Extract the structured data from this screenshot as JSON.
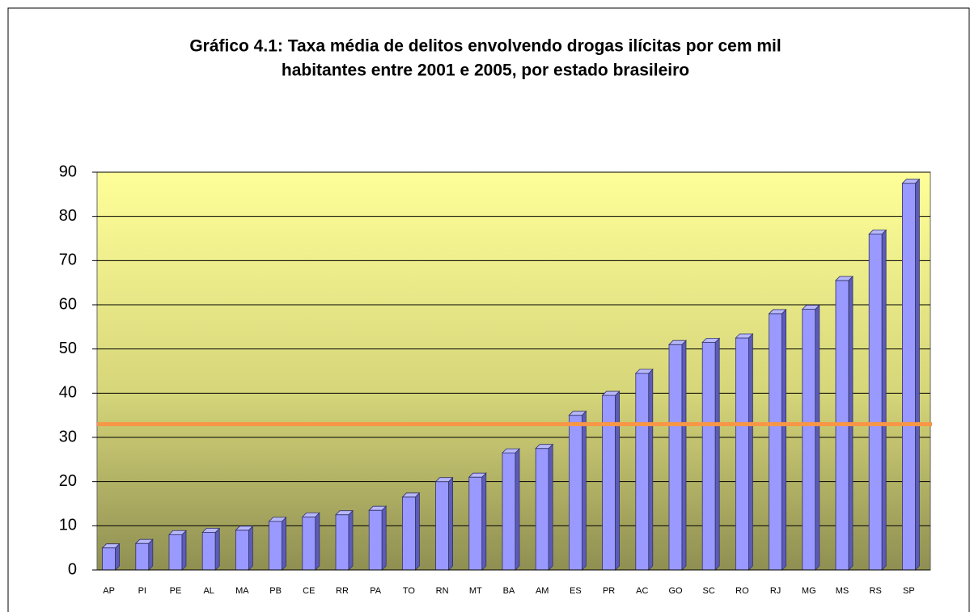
{
  "chart_data": {
    "type": "bar",
    "title": "Gráfico 4.1: Taxa média de delitos envolvendo drogas ilícitas por cem mil",
    "subtitle": "habitantes entre 2001 e 2005, por estado brasileiro",
    "categories": [
      "AP",
      "PI",
      "PE",
      "AL",
      "MA",
      "PB",
      "CE",
      "RR",
      "PA",
      "TO",
      "RN",
      "MT",
      "BA",
      "AM",
      "ES",
      "PR",
      "AC",
      "GO",
      "SC",
      "RO",
      "RJ",
      "MG",
      "MS",
      "RS",
      "SP"
    ],
    "values": [
      5,
      6,
      8,
      8.5,
      9,
      11,
      12,
      12.5,
      13.5,
      16.5,
      20,
      21,
      26.5,
      27.5,
      35,
      39.5,
      44.5,
      51,
      51.5,
      52.5,
      58,
      59,
      65.5,
      76,
      87.5
    ],
    "color": "#9999ff",
    "reference_value": 33,
    "reference_color": "#f79646",
    "ylim": [
      0,
      90
    ],
    "yticks": [
      0,
      10,
      20,
      30,
      40,
      50,
      60,
      70,
      80,
      90
    ],
    "grid": true
  }
}
